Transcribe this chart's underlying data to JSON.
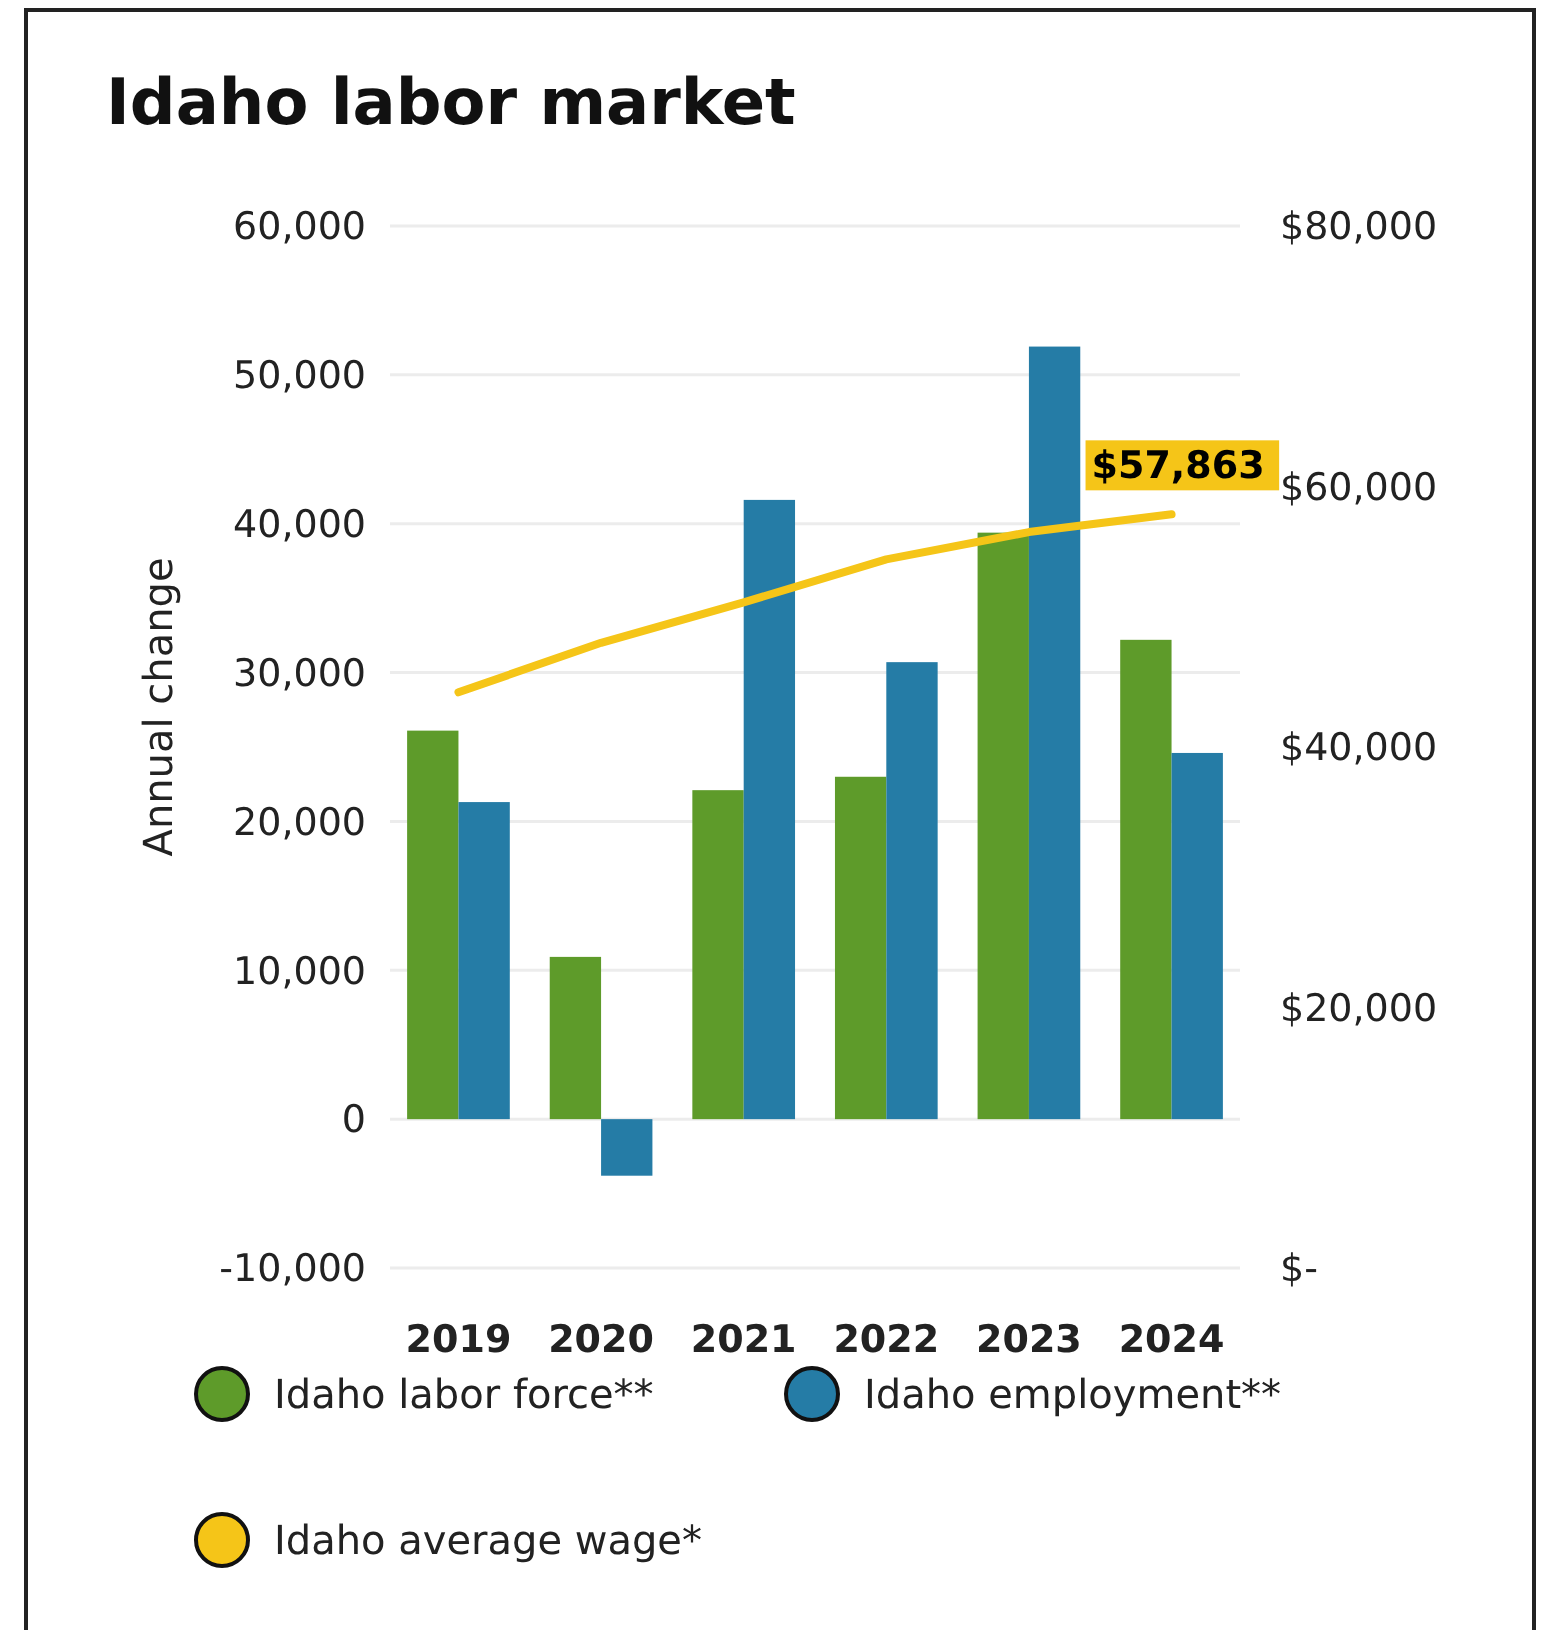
{
  "chart_data": {
    "type": "bar",
    "title": "Idaho labor market",
    "ylabel": "Annual change",
    "categories": [
      "2019",
      "2020",
      "2021",
      "2022",
      "2023",
      "2024"
    ],
    "series": [
      {
        "name": "Idaho labor force**",
        "color": "#5e9b2a",
        "values": [
          26100,
          10900,
          22100,
          23000,
          39400,
          32200
        ]
      },
      {
        "name": "Idaho employment**",
        "color": "#257ca6",
        "values": [
          21300,
          -3800,
          41600,
          30700,
          51900,
          24600
        ]
      },
      {
        "name": "Idaho average wage*",
        "type": "line",
        "axis": "y2",
        "color": "#f5c518",
        "values": [
          44200,
          48000,
          51100,
          54400,
          56500,
          57863
        ],
        "value_labels": [
          null,
          null,
          null,
          null,
          null,
          "$57,863"
        ]
      }
    ],
    "ylim": [
      -10000,
      60000
    ],
    "yticks": [
      {
        "value": -10000,
        "label": "-10,000"
      },
      0,
      {
        "value": 10000,
        "label": "10,000"
      },
      {
        "value": 20000,
        "label": "20,000"
      },
      {
        "value": 30000,
        "label": "30,000"
      },
      {
        "value": 40000,
        "label": "40,000"
      },
      {
        "value": 50000,
        "label": "50,000"
      },
      {
        "value": 60000,
        "label": "60,000"
      }
    ],
    "y2lim": [
      0,
      80000
    ],
    "y2ticks": [
      {
        "value": 0,
        "label": "$-"
      },
      {
        "value": 20000,
        "label": "$20,000"
      },
      {
        "value": 40000,
        "label": "$40,000"
      },
      {
        "value": 60000,
        "label": "$60,000"
      },
      {
        "value": 80000,
        "label": "$80,000"
      }
    ],
    "grid": "y",
    "legend": "bottom",
    "marker": "none",
    "line_style": "solid"
  }
}
